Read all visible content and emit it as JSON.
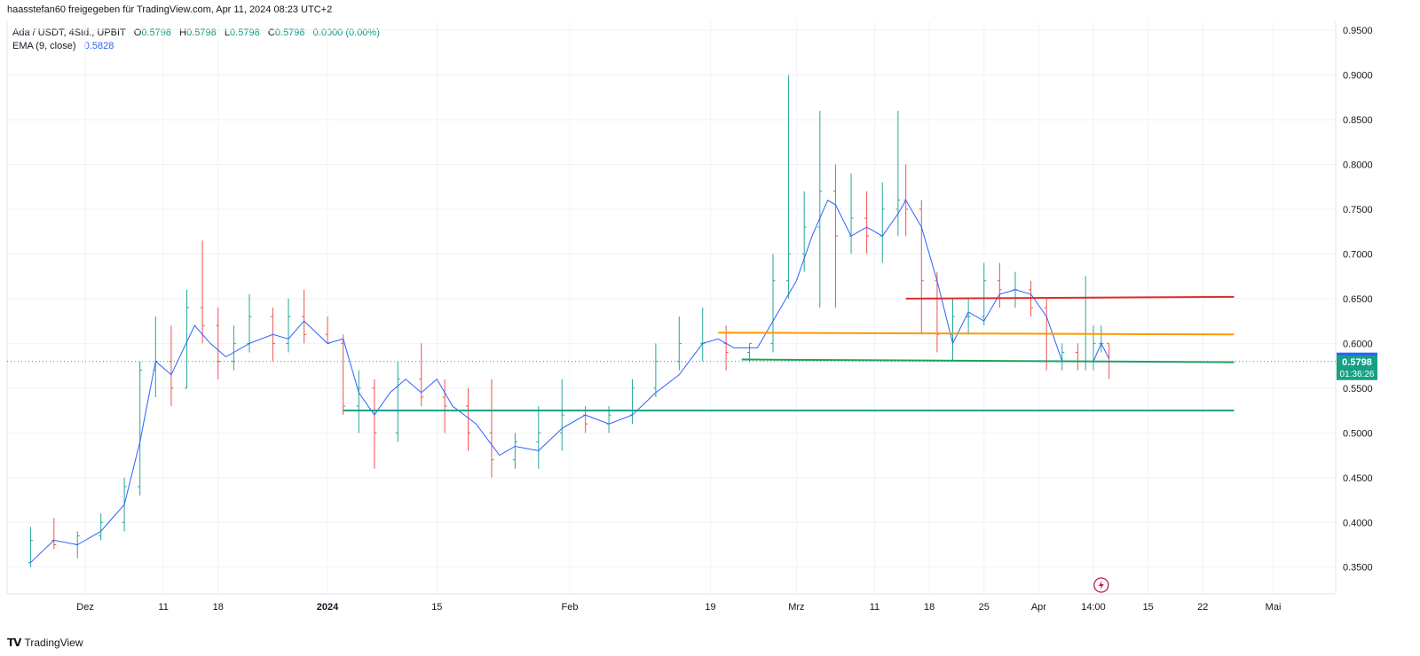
{
  "header": {
    "publisher": "haasstefan60 freigegeben für TradingView.com, Apr 11, 2024 08:23 UTC+2"
  },
  "legend": {
    "symbol": "Ada / USDT, 4Std., UPBIT",
    "o_label": "O",
    "o_value": "0.5798",
    "h_label": "H",
    "h_value": "0.5798",
    "l_label": "L",
    "l_value": "0.5798",
    "c_label": "C",
    "c_value": "0.5798",
    "change": "0.0000 (0.00%)",
    "ema_label": "EMA (9, close)",
    "ema_value": "0.5828"
  },
  "footer": {
    "brand": "TradingView"
  },
  "colors": {
    "up": "#26a69a",
    "down": "#ef5350",
    "ema": "#2962ff",
    "resistance": "#e02b2b",
    "mid": "#ff9800",
    "support1": "#22a060",
    "support2": "#16a085",
    "grid": "#f0f3fa"
  },
  "chart_data": {
    "type": "candlestick",
    "title": "Ada / USDT, 4Std., UPBIT",
    "ylim": [
      0.32,
      0.96
    ],
    "y_ticks": [
      "0.9500",
      "0.9000",
      "0.8500",
      "0.8000",
      "0.7500",
      "0.7000",
      "0.6500",
      "0.6000",
      "0.5500",
      "0.5000",
      "0.4500",
      "0.4000",
      "0.3500"
    ],
    "x_ticks": [
      {
        "label": "Dez",
        "date": "2023-12-01"
      },
      {
        "label": "11",
        "date": "2023-12-11"
      },
      {
        "label": "18",
        "date": "2023-12-18"
      },
      {
        "label": "2024",
        "date": "2024-01-01"
      },
      {
        "label": "15",
        "date": "2024-01-15"
      },
      {
        "label": "Feb",
        "date": "2024-02-01"
      },
      {
        "label": "19",
        "date": "2024-02-19"
      },
      {
        "label": "Mrz",
        "date": "2024-03-01"
      },
      {
        "label": "11",
        "date": "2024-03-11"
      },
      {
        "label": "18",
        "date": "2024-03-18"
      },
      {
        "label": "25",
        "date": "2024-03-25"
      },
      {
        "label": "Apr",
        "date": "2024-04-01"
      },
      {
        "label": "14:00",
        "date": "2024-04-08"
      },
      {
        "label": "15",
        "date": "2024-04-15"
      },
      {
        "label": "22",
        "date": "2024-04-22"
      },
      {
        "label": "Mai",
        "date": "2024-05-01"
      }
    ],
    "series": [
      {
        "name": "EMA (9, close)",
        "type": "line",
        "points": [
          [
            "2023-11-24",
            0.355
          ],
          [
            "2023-11-27",
            0.38
          ],
          [
            "2023-11-30",
            0.375
          ],
          [
            "2023-12-03",
            0.39
          ],
          [
            "2023-12-06",
            0.42
          ],
          [
            "2023-12-08",
            0.49
          ],
          [
            "2023-12-10",
            0.58
          ],
          [
            "2023-12-12",
            0.565
          ],
          [
            "2023-12-15",
            0.62
          ],
          [
            "2023-12-17",
            0.6
          ],
          [
            "2023-12-19",
            0.585
          ],
          [
            "2023-12-22",
            0.6
          ],
          [
            "2023-12-25",
            0.61
          ],
          [
            "2023-12-27",
            0.605
          ],
          [
            "2023-12-29",
            0.625
          ],
          [
            "2024-01-01",
            0.6
          ],
          [
            "2024-01-03",
            0.605
          ],
          [
            "2024-01-05",
            0.545
          ],
          [
            "2024-01-07",
            0.52
          ],
          [
            "2024-01-09",
            0.545
          ],
          [
            "2024-01-11",
            0.56
          ],
          [
            "2024-01-13",
            0.545
          ],
          [
            "2024-01-15",
            0.56
          ],
          [
            "2024-01-17",
            0.53
          ],
          [
            "2024-01-20",
            0.51
          ],
          [
            "2024-01-23",
            0.475
          ],
          [
            "2024-01-25",
            0.485
          ],
          [
            "2024-01-28",
            0.48
          ],
          [
            "2024-01-31",
            0.505
          ],
          [
            "2024-02-03",
            0.52
          ],
          [
            "2024-02-06",
            0.51
          ],
          [
            "2024-02-09",
            0.52
          ],
          [
            "2024-02-12",
            0.545
          ],
          [
            "2024-02-15",
            0.565
          ],
          [
            "2024-02-18",
            0.6
          ],
          [
            "2024-02-20",
            0.605
          ],
          [
            "2024-02-22",
            0.595
          ],
          [
            "2024-02-25",
            0.595
          ],
          [
            "2024-02-28",
            0.64
          ],
          [
            "2024-03-01",
            0.67
          ],
          [
            "2024-03-03",
            0.72
          ],
          [
            "2024-03-05",
            0.76
          ],
          [
            "2024-03-06",
            0.755
          ],
          [
            "2024-03-08",
            0.72
          ],
          [
            "2024-03-10",
            0.73
          ],
          [
            "2024-03-12",
            0.72
          ],
          [
            "2024-03-14",
            0.745
          ],
          [
            "2024-03-15",
            0.76
          ],
          [
            "2024-03-17",
            0.73
          ],
          [
            "2024-03-19",
            0.67
          ],
          [
            "2024-03-21",
            0.6
          ],
          [
            "2024-03-23",
            0.635
          ],
          [
            "2024-03-25",
            0.625
          ],
          [
            "2024-03-27",
            0.655
          ],
          [
            "2024-03-29",
            0.66
          ],
          [
            "2024-03-31",
            0.655
          ],
          [
            "2024-04-02",
            0.63
          ],
          [
            "2024-04-04",
            0.58
          ],
          [
            "2024-04-06",
            0.58
          ],
          [
            "2024-04-08",
            0.58
          ],
          [
            "2024-04-09",
            0.6
          ],
          [
            "2024-04-10",
            0.5828
          ]
        ]
      }
    ],
    "candles_note": "OHLC bars, green up / red down, from late Nov 2023 to Apr 10 2024",
    "candles": [
      [
        "2023-11-24",
        0.355,
        0.395,
        0.35,
        0.38
      ],
      [
        "2023-11-27",
        0.38,
        0.405,
        0.37,
        0.375
      ],
      [
        "2023-11-30",
        0.375,
        0.39,
        0.36,
        0.385
      ],
      [
        "2023-12-03",
        0.385,
        0.41,
        0.38,
        0.4
      ],
      [
        "2023-12-06",
        0.4,
        0.45,
        0.39,
        0.44
      ],
      [
        "2023-12-08",
        0.44,
        0.58,
        0.43,
        0.57
      ],
      [
        "2023-12-10",
        0.57,
        0.63,
        0.54,
        0.58
      ],
      [
        "2023-12-12",
        0.58,
        0.62,
        0.53,
        0.55
      ],
      [
        "2023-12-14",
        0.55,
        0.66,
        0.55,
        0.64
      ],
      [
        "2023-12-16",
        0.64,
        0.715,
        0.6,
        0.62
      ],
      [
        "2023-12-18",
        0.62,
        0.64,
        0.56,
        0.58
      ],
      [
        "2023-12-20",
        0.58,
        0.62,
        0.57,
        0.6
      ],
      [
        "2023-12-22",
        0.6,
        0.655,
        0.59,
        0.63
      ],
      [
        "2023-12-25",
        0.63,
        0.64,
        0.58,
        0.6
      ],
      [
        "2023-12-27",
        0.6,
        0.65,
        0.59,
        0.63
      ],
      [
        "2023-12-29",
        0.63,
        0.66,
        0.6,
        0.61
      ],
      [
        "2024-01-01",
        0.61,
        0.63,
        0.6,
        0.6
      ],
      [
        "2024-01-03",
        0.6,
        0.61,
        0.52,
        0.53
      ],
      [
        "2024-01-05",
        0.53,
        0.57,
        0.5,
        0.55
      ],
      [
        "2024-01-07",
        0.55,
        0.56,
        0.46,
        0.5
      ],
      [
        "2024-01-10",
        0.5,
        0.58,
        0.49,
        0.56
      ],
      [
        "2024-01-13",
        0.56,
        0.6,
        0.53,
        0.54
      ],
      [
        "2024-01-16",
        0.54,
        0.56,
        0.5,
        0.53
      ],
      [
        "2024-01-19",
        0.53,
        0.55,
        0.48,
        0.5
      ],
      [
        "2024-01-22",
        0.5,
        0.56,
        0.45,
        0.47
      ],
      [
        "2024-01-25",
        0.47,
        0.5,
        0.46,
        0.49
      ],
      [
        "2024-01-28",
        0.49,
        0.53,
        0.46,
        0.5
      ],
      [
        "2024-01-31",
        0.5,
        0.56,
        0.48,
        0.52
      ],
      [
        "2024-02-03",
        0.52,
        0.53,
        0.5,
        0.51
      ],
      [
        "2024-02-06",
        0.51,
        0.53,
        0.5,
        0.52
      ],
      [
        "2024-02-09",
        0.52,
        0.56,
        0.51,
        0.55
      ],
      [
        "2024-02-12",
        0.55,
        0.6,
        0.54,
        0.58
      ],
      [
        "2024-02-15",
        0.58,
        0.63,
        0.57,
        0.6
      ],
      [
        "2024-02-18",
        0.6,
        0.64,
        0.58,
        0.6
      ],
      [
        "2024-02-21",
        0.6,
        0.62,
        0.57,
        0.59
      ],
      [
        "2024-02-24",
        0.59,
        0.6,
        0.58,
        0.6
      ],
      [
        "2024-02-27",
        0.6,
        0.7,
        0.59,
        0.67
      ],
      [
        "2024-02-29",
        0.67,
        0.9,
        0.65,
        0.7
      ],
      [
        "2024-03-02",
        0.7,
        0.77,
        0.68,
        0.73
      ],
      [
        "2024-03-04",
        0.73,
        0.86,
        0.64,
        0.77
      ],
      [
        "2024-03-06",
        0.77,
        0.8,
        0.64,
        0.72
      ],
      [
        "2024-03-08",
        0.72,
        0.79,
        0.7,
        0.74
      ],
      [
        "2024-03-10",
        0.74,
        0.77,
        0.7,
        0.72
      ],
      [
        "2024-03-12",
        0.72,
        0.78,
        0.69,
        0.75
      ],
      [
        "2024-03-14",
        0.75,
        0.86,
        0.72,
        0.76
      ],
      [
        "2024-03-15",
        0.76,
        0.8,
        0.72,
        0.75
      ],
      [
        "2024-03-17",
        0.75,
        0.76,
        0.61,
        0.67
      ],
      [
        "2024-03-19",
        0.67,
        0.68,
        0.59,
        0.61
      ],
      [
        "2024-03-21",
        0.61,
        0.65,
        0.58,
        0.63
      ],
      [
        "2024-03-23",
        0.63,
        0.65,
        0.61,
        0.63
      ],
      [
        "2024-03-25",
        0.63,
        0.69,
        0.62,
        0.67
      ],
      [
        "2024-03-27",
        0.67,
        0.69,
        0.64,
        0.66
      ],
      [
        "2024-03-29",
        0.66,
        0.68,
        0.64,
        0.66
      ],
      [
        "2024-03-31",
        0.66,
        0.67,
        0.63,
        0.64
      ],
      [
        "2024-04-02",
        0.64,
        0.65,
        0.57,
        0.58
      ],
      [
        "2024-04-04",
        0.58,
        0.6,
        0.57,
        0.59
      ],
      [
        "2024-04-06",
        0.59,
        0.6,
        0.57,
        0.58
      ],
      [
        "2024-04-07",
        0.58,
        0.675,
        0.57,
        0.58
      ],
      [
        "2024-04-08",
        0.58,
        0.62,
        0.57,
        0.6
      ],
      [
        "2024-04-09",
        0.6,
        0.62,
        0.59,
        0.6
      ],
      [
        "2024-04-10",
        0.6,
        0.6,
        0.56,
        0.5798
      ]
    ],
    "horizontal_lines": [
      {
        "name": "resistance",
        "color": "red",
        "from": [
          "2024-03-15",
          0.65
        ],
        "to": [
          "2024-04-26",
          0.652
        ]
      },
      {
        "name": "mid",
        "color": "orange",
        "from": [
          "2024-02-20",
          0.612
        ],
        "to": [
          "2024-04-26",
          0.61
        ]
      },
      {
        "name": "support",
        "color": "green",
        "from": [
          "2024-02-23",
          0.582
        ],
        "to": [
          "2024-04-26",
          0.579
        ]
      },
      {
        "name": "support-low",
        "color": "teal",
        "from": [
          "2024-01-03",
          0.525
        ],
        "to": [
          "2024-04-26",
          0.525
        ]
      }
    ],
    "price_labels": {
      "ema": "0.5828",
      "last": "0.5798",
      "countdown": "01:36:26"
    },
    "grid": true,
    "legend_position": "top-left"
  }
}
